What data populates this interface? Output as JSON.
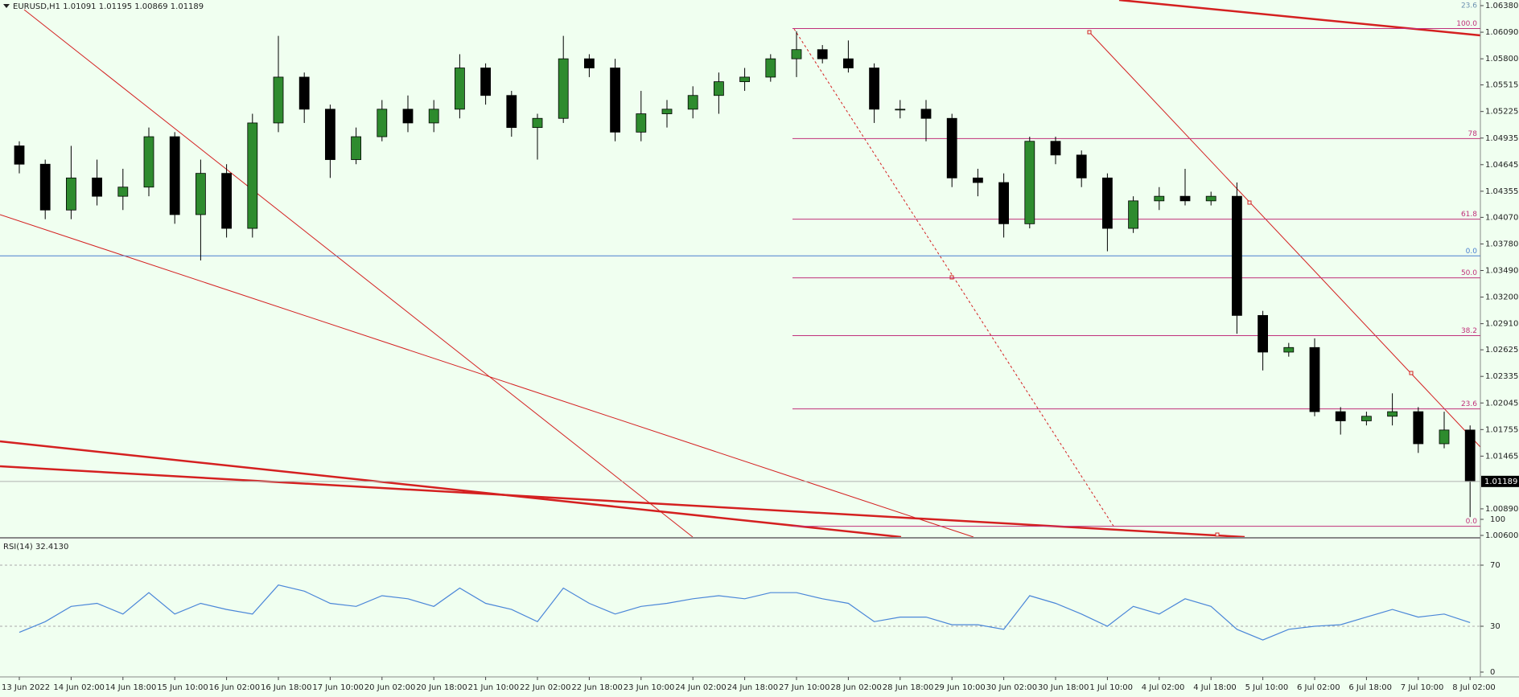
{
  "chart_data": {
    "type": "candlestick",
    "title": "EURUSD,H1  1.01091 1.01195 1.00869 1.01189",
    "categories": [
      "13 Jun 2022",
      null,
      "14 Jun 02:00",
      null,
      "14 Jun 18:00",
      null,
      "15 Jun 10:00",
      null,
      "16 Jun 02:00",
      null,
      "16 Jun 18:00",
      null,
      "17 Jun 10:00",
      null,
      "20 Jun 02:00",
      null,
      "20 Jun 18:00",
      null,
      "21 Jun 10:00",
      null,
      "22 Jun 02:00",
      null,
      "22 Jun 18:00",
      null,
      "23 Jun 10:00",
      null,
      "24 Jun 02:00",
      null,
      "24 Jun 18:00",
      null,
      "27 Jun 10:00",
      null,
      "28 Jun 02:00",
      null,
      "28 Jun 18:00",
      null,
      "29 Jun 10:00",
      null,
      "30 Jun 02:00",
      null,
      "30 Jun 18:00",
      null,
      "1 Jul 10:00",
      null,
      "4 Jul 02:00",
      null,
      "4 Jul 18:00",
      null,
      "5 Jul 10:00",
      null,
      "6 Jul 02:00",
      null,
      "6 Jul 18:00",
      null,
      "7 Jul 10:00",
      null,
      "8 Jul 02:00"
    ],
    "open": [
      1.0485,
      1.0465,
      1.0415,
      1.045,
      1.043,
      1.044,
      1.0495,
      1.041,
      1.0455,
      1.0395,
      1.051,
      1.056,
      1.0525,
      1.047,
      1.0495,
      1.0525,
      1.051,
      1.0525,
      1.057,
      1.054,
      1.0505,
      1.0515,
      1.058,
      1.057,
      1.05,
      1.052,
      1.0525,
      1.054,
      1.0555,
      1.056,
      1.058,
      1.059,
      1.058,
      1.057,
      1.0525,
      1.0525,
      1.0515,
      1.045,
      1.0445,
      1.04,
      1.049,
      1.0475,
      1.045,
      1.0395,
      1.0425,
      1.043,
      1.0425,
      1.043,
      1.03,
      1.026,
      1.0265,
      1.0195,
      1.0185,
      1.019,
      1.0195,
      1.016,
      1.0175
    ],
    "high": [
      1.049,
      1.047,
      1.0485,
      1.047,
      1.046,
      1.0505,
      1.05,
      1.047,
      1.0465,
      1.052,
      1.0605,
      1.0565,
      1.053,
      1.0505,
      1.0535,
      1.054,
      1.0535,
      1.0585,
      1.0575,
      1.0545,
      1.052,
      1.0605,
      1.0585,
      1.058,
      1.0545,
      1.0535,
      1.055,
      1.0565,
      1.057,
      1.0585,
      1.061,
      1.0595,
      1.06,
      1.0575,
      1.0535,
      1.0535,
      1.052,
      1.046,
      1.0455,
      1.0495,
      1.0495,
      1.048,
      1.0455,
      1.043,
      1.044,
      1.046,
      1.0435,
      1.0445,
      1.0305,
      1.027,
      1.0275,
      1.02,
      1.0195,
      1.0215,
      1.02,
      1.0195,
      1.018
    ],
    "low": [
      1.0455,
      1.0405,
      1.0405,
      1.042,
      1.0415,
      1.043,
      1.04,
      1.036,
      1.0385,
      1.0385,
      1.05,
      1.051,
      1.045,
      1.0465,
      1.049,
      1.05,
      1.05,
      1.0515,
      1.053,
      1.0495,
      1.047,
      1.051,
      1.056,
      1.049,
      1.049,
      1.0505,
      1.0515,
      1.052,
      1.0545,
      1.0555,
      1.056,
      1.0575,
      1.0565,
      1.051,
      1.0515,
      1.049,
      1.044,
      1.043,
      1.0385,
      1.0395,
      1.0465,
      1.044,
      1.037,
      1.039,
      1.0415,
      1.042,
      1.042,
      1.028,
      1.024,
      1.0255,
      1.019,
      1.017,
      1.018,
      1.018,
      1.015,
      1.0155,
      1.008
    ],
    "close": [
      1.0465,
      1.0415,
      1.045,
      1.043,
      1.044,
      1.0495,
      1.041,
      1.0455,
      1.0395,
      1.051,
      1.056,
      1.0525,
      1.047,
      1.0495,
      1.0525,
      1.051,
      1.0525,
      1.057,
      1.054,
      1.0505,
      1.0515,
      1.058,
      1.057,
      1.05,
      1.052,
      1.0525,
      1.054,
      1.0555,
      1.056,
      1.058,
      1.059,
      1.058,
      1.057,
      1.0525,
      1.0525,
      1.0515,
      1.045,
      1.0445,
      1.04,
      1.049,
      1.0475,
      1.045,
      1.0395,
      1.0425,
      1.043,
      1.0425,
      1.043,
      1.03,
      1.026,
      1.0265,
      1.0195,
      1.0185,
      1.019,
      1.0195,
      1.016,
      1.0175,
      1.01189
    ],
    "up_color": "#2e8b2e",
    "down_color": "#000000",
    "ylim": [
      1.006,
      1.0638
    ],
    "yticks": [
      {
        "value": 1.0638,
        "label": "1.06380"
      },
      {
        "value": 1.0609,
        "label": "1.06090"
      },
      {
        "value": 1.058,
        "label": "1.05800"
      },
      {
        "value": 1.05515,
        "label": "1.05515"
      },
      {
        "value": 1.05225,
        "label": "1.05225"
      },
      {
        "value": 1.04935,
        "label": "1.04935"
      },
      {
        "value": 1.04645,
        "label": "1.04645"
      },
      {
        "value": 1.04355,
        "label": "1.04355"
      },
      {
        "value": 1.0407,
        "label": "1.04070"
      },
      {
        "value": 1.0378,
        "label": "1.03780"
      },
      {
        "value": 1.0349,
        "label": "1.03490"
      },
      {
        "value": 1.032,
        "label": "1.03200"
      },
      {
        "value": 1.0291,
        "label": "1.02910"
      },
      {
        "value": 1.02625,
        "label": "1.02625"
      },
      {
        "value": 1.02335,
        "label": "1.02335"
      },
      {
        "value": 1.02045,
        "label": "1.02045"
      },
      {
        "value": 1.01755,
        "label": "1.01755"
      },
      {
        "value": 1.01465,
        "label": "1.01465"
      },
      {
        "value": 1.0089,
        "label": "1.00890"
      },
      {
        "value": 1.006,
        "label": "1.00600"
      }
    ],
    "current_price": 1.01189,
    "horizontal_line": {
      "value": 1.0365,
      "color": "#4a7fd0"
    },
    "fibonacci": {
      "color": "#c0307a",
      "levels": [
        {
          "value": 1.0613,
          "label": "100.0"
        },
        {
          "value": 1.0493,
          "label": "78"
        },
        {
          "value": 1.0405,
          "label": "61.8"
        },
        {
          "value": 1.0341,
          "label": "50.0"
        },
        {
          "value": 1.0278,
          "label": "38.2"
        },
        {
          "value": 1.0198,
          "label": "23.6"
        },
        {
          "value": 1.007,
          "label": "0.0"
        }
      ]
    },
    "annotations": [
      {
        "value": 1.0638,
        "label": "23.6",
        "color": "#6b8fb0"
      },
      {
        "value": 1.0365,
        "label": "0.0",
        "color": "#4a7fd0"
      }
    ],
    "rsi": {
      "title": "RSI(14) 32.4130",
      "color": "#4a86d8",
      "values": [
        26,
        33,
        43,
        45,
        38,
        52,
        38,
        45,
        41,
        38,
        57,
        53,
        45,
        43,
        50,
        48,
        43,
        55,
        45,
        41,
        33,
        55,
        45,
        38,
        43,
        45,
        48,
        50,
        48,
        52,
        52,
        48,
        45,
        33,
        36,
        36,
        31,
        31,
        28,
        50,
        45,
        38,
        30,
        43,
        38,
        48,
        43,
        28,
        21,
        28,
        30,
        31,
        36,
        41,
        36,
        38,
        32.413
      ],
      "ylim": [
        0,
        100
      ],
      "yticks": [
        100,
        70,
        30,
        0
      ],
      "levels": [
        70,
        30
      ]
    }
  }
}
